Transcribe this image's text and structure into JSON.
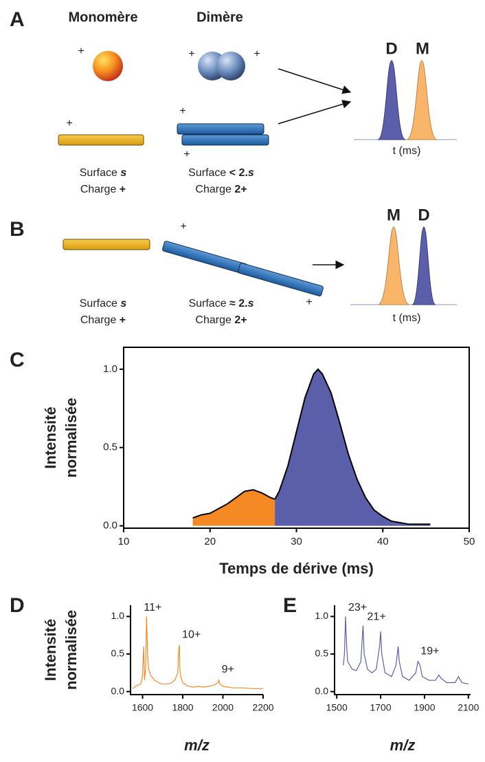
{
  "figure": {
    "panel_labels": [
      "A",
      "B",
      "C",
      "D",
      "E"
    ],
    "monomer_title": "Monomère",
    "dimer_title": "Dimère",
    "plus": "+",
    "peak_labels": {
      "dimer": "D",
      "monomer": "M"
    },
    "time_axis": "t (ms)",
    "surface_word": "Surface",
    "charge_word": "Charge",
    "s": "s",
    "less_than_2": "< 2.",
    "approx_2": "≈ 2.",
    "two_plus": "2+"
  },
  "chart_data": [
    {
      "type": "area",
      "xlabel": "Temps de dérive (ms)",
      "ylabel": [
        "Intensité",
        "normalisée"
      ],
      "xlim": [
        10,
        50
      ],
      "ylim": [
        -0.015,
        1.14
      ],
      "xticks": [
        10,
        20,
        30,
        40,
        50
      ],
      "yticks": [
        {
          "value": 0,
          "label": "0.0"
        },
        {
          "value": 0.5,
          "label": "0.5"
        },
        {
          "value": 1,
          "label": "1.0"
        }
      ],
      "frame": "box",
      "series": [
        {
          "name": "Monomère",
          "color": "#f58a24",
          "x": [
            18,
            19,
            20,
            21,
            22,
            23,
            24,
            25,
            26,
            27,
            27.5
          ],
          "values": [
            0.05,
            0.07,
            0.08,
            0.11,
            0.14,
            0.18,
            0.22,
            0.23,
            0.21,
            0.18,
            0.17
          ]
        },
        {
          "name": "Dimère",
          "color": "#5b5ea8",
          "x": [
            27.5,
            28,
            29,
            30,
            31,
            32,
            32.5,
            33,
            34,
            35,
            36,
            37,
            38,
            39,
            40,
            41,
            42,
            43,
            44,
            45.5
          ],
          "values": [
            0.17,
            0.22,
            0.38,
            0.6,
            0.82,
            0.97,
            1.0,
            0.97,
            0.85,
            0.66,
            0.46,
            0.3,
            0.18,
            0.1,
            0.06,
            0.03,
            0.02,
            0.01,
            0.01,
            0.01
          ]
        }
      ]
    },
    {
      "type": "line",
      "xlabel": "m/z",
      "ylabel": [
        "Intensité",
        "normalisée"
      ],
      "xlim": [
        1540,
        2200
      ],
      "ylim": [
        -0.04,
        1.15
      ],
      "xticks": [
        1600,
        1800,
        2000,
        2200
      ],
      "yticks": [
        {
          "value": 0,
          "label": "0.0"
        },
        {
          "value": 0.5,
          "label": "0.5"
        },
        {
          "value": 1,
          "label": "1.0"
        }
      ],
      "frame": "axes",
      "color": "#f58a24",
      "annotations": [
        "11+",
        "10+",
        "9+"
      ],
      "x": [
        1550,
        1570,
        1590,
        1600,
        1605,
        1610,
        1615,
        1620,
        1625,
        1630,
        1640,
        1660,
        1680,
        1700,
        1720,
        1740,
        1760,
        1775,
        1780,
        1783,
        1786,
        1790,
        1800,
        1820,
        1850,
        1880,
        1900,
        1930,
        1960,
        1975,
        1980,
        1985,
        2000,
        2050,
        2100,
        2150,
        2200
      ],
      "values": [
        0.04,
        0.08,
        0.1,
        0.2,
        0.6,
        0.15,
        0.3,
        1.0,
        0.5,
        0.3,
        0.22,
        0.15,
        0.12,
        0.1,
        0.1,
        0.11,
        0.15,
        0.25,
        0.55,
        0.62,
        0.3,
        0.2,
        0.12,
        0.08,
        0.06,
        0.07,
        0.06,
        0.07,
        0.09,
        0.12,
        0.15,
        0.1,
        0.07,
        0.05,
        0.05,
        0.04,
        0.04
      ]
    },
    {
      "type": "line",
      "xlabel": "m/z",
      "xlim": [
        1490,
        2110
      ],
      "ylim": [
        -0.04,
        1.15
      ],
      "xticks": [
        1500,
        1700,
        1900,
        2100
      ],
      "yticks": [
        {
          "value": 0,
          "label": "0.0"
        },
        {
          "value": 0.5,
          "label": "0.5"
        },
        {
          "value": 1,
          "label": "1.0"
        }
      ],
      "frame": "axes",
      "color": "#5b5ea8",
      "annotations": [
        "23+",
        "21+",
        "19+"
      ],
      "x": [
        1530,
        1535,
        1540,
        1545,
        1550,
        1570,
        1590,
        1610,
        1620,
        1625,
        1640,
        1660,
        1680,
        1695,
        1700,
        1705,
        1720,
        1750,
        1770,
        1780,
        1785,
        1800,
        1830,
        1860,
        1870,
        1880,
        1890,
        1920,
        1950,
        1965,
        1975,
        2000,
        2040,
        2055,
        2070,
        2100
      ],
      "values": [
        0.35,
        0.5,
        1.0,
        0.6,
        0.4,
        0.3,
        0.28,
        0.4,
        0.88,
        0.5,
        0.3,
        0.25,
        0.3,
        0.6,
        0.8,
        0.5,
        0.25,
        0.2,
        0.35,
        0.6,
        0.4,
        0.2,
        0.15,
        0.25,
        0.4,
        0.35,
        0.2,
        0.15,
        0.15,
        0.22,
        0.18,
        0.12,
        0.12,
        0.2,
        0.12,
        0.1
      ]
    }
  ]
}
